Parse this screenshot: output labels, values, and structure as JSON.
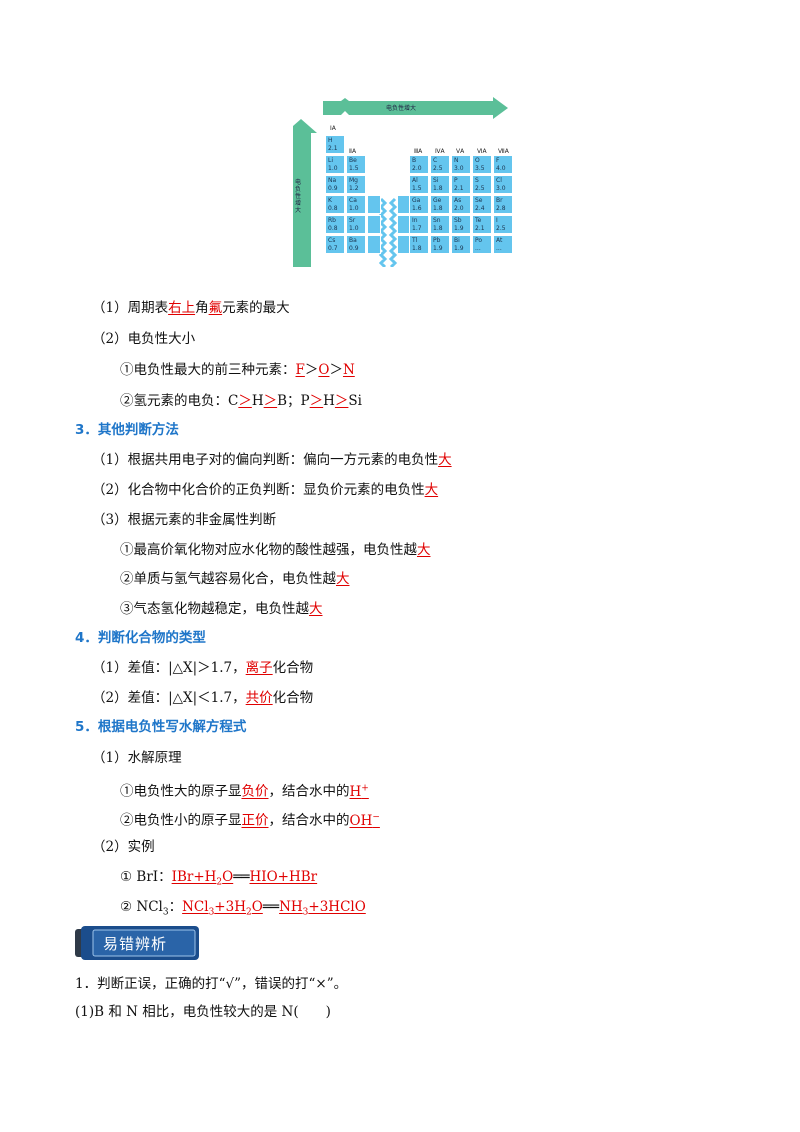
{
  "figure": {
    "top_arrow_label": "电负性增大",
    "side_arrow_label": "电负性增大",
    "group_headers": [
      "ⅠA",
      "ⅡA",
      "ⅢA",
      "ⅣA",
      "ⅤA",
      "ⅥA",
      "ⅦA"
    ],
    "left_cells": [
      [
        {
          "s": "H",
          "v": "2.1"
        }
      ],
      [
        {
          "s": "Li",
          "v": "1.0"
        },
        {
          "s": "Be",
          "v": "1.5"
        }
      ],
      [
        {
          "s": "Na",
          "v": "0.9"
        },
        {
          "s": "Mg",
          "v": "1.2"
        }
      ],
      [
        {
          "s": "K",
          "v": "0.8"
        },
        {
          "s": "Ca",
          "v": "1.0"
        }
      ],
      [
        {
          "s": "Rb",
          "v": "0.8"
        },
        {
          "s": "Sr",
          "v": "1.0"
        }
      ],
      [
        {
          "s": "Cs",
          "v": "0.7"
        },
        {
          "s": "Ba",
          "v": "0.9"
        }
      ]
    ],
    "right_cells": [
      [
        {
          "s": "B",
          "v": "2.0"
        },
        {
          "s": "C",
          "v": "2.5"
        },
        {
          "s": "N",
          "v": "3.0"
        },
        {
          "s": "O",
          "v": "3.5"
        },
        {
          "s": "F",
          "v": "4.0"
        }
      ],
      [
        {
          "s": "Al",
          "v": "1.5"
        },
        {
          "s": "Si",
          "v": "1.8"
        },
        {
          "s": "P",
          "v": "2.1"
        },
        {
          "s": "S",
          "v": "2.5"
        },
        {
          "s": "Cl",
          "v": "3.0"
        }
      ],
      [
        {
          "s": "Ga",
          "v": "1.6"
        },
        {
          "s": "Ge",
          "v": "1.8"
        },
        {
          "s": "As",
          "v": "2.0"
        },
        {
          "s": "Se",
          "v": "2.4"
        },
        {
          "s": "Br",
          "v": "2.8"
        }
      ],
      [
        {
          "s": "In",
          "v": "1.7"
        },
        {
          "s": "Sn",
          "v": "1.8"
        },
        {
          "s": "Sb",
          "v": "1.9"
        },
        {
          "s": "Te",
          "v": "2.1"
        },
        {
          "s": "I",
          "v": "2.5"
        }
      ],
      [
        {
          "s": "Tl",
          "v": "1.8"
        },
        {
          "s": "Pb",
          "v": "1.9"
        },
        {
          "s": "Bi",
          "v": "1.9"
        },
        {
          "s": "Po",
          "v": "..."
        },
        {
          "s": "At",
          "v": "..."
        }
      ]
    ]
  },
  "s1": {
    "p1a": "（1）周期表",
    "p1ans": "右上",
    "p1b": "角",
    "p1ans2": "氟",
    "p1c": "元素的最大"
  },
  "s2": {
    "title": "（2）电负性大小",
    "i1a": "①电负性最大的前三种元素：",
    "i1F": "F",
    "i1gt1": "＞",
    "i1O": "O",
    "i1gt2": "＞",
    "i1N": "N",
    "i2a": "②氢元素的电负：C",
    "i2g1": "＞",
    "i2H1": "H",
    "i2g2": "＞",
    "i2b": "B；P",
    "i2g3": "＞",
    "i2H2": "H",
    "i2g4": "＞",
    "i2c": "Si"
  },
  "s3": {
    "heading": "3．其他判断方法",
    "a": "（1）根据共用电子对的偏向判断：偏向一方元素的电负性",
    "a_ans": "大",
    "b": "（2）化合物中化合价的正负判断：显负价元素的电负性",
    "b_ans": "大",
    "c": "（3）根据元素的非金属性判断",
    "c1": "①最高价氧化物对应水化物的酸性越强，电负性越",
    "c1_ans": "大",
    "c2": "②单质与氢气越容易化合，电负性越",
    "c2_ans": "大",
    "c3": "③气态氢化物越稳定，电负性越",
    "c3_ans": "大"
  },
  "s4": {
    "heading": "4．判断化合物的类型",
    "a": "（1）差值：|△X|＞1.7，",
    "a_ans": "离子",
    "a_end": "化合物",
    "b": "（2）差值：|△X|＜1.7，",
    "b_ans": "共价",
    "b_end": "化合物"
  },
  "s5": {
    "heading": "5．根据电负性写水解方程式",
    "t1": "（1）水解原理",
    "t1a": "①电负性大的原子显",
    "t1a_ans": "负价",
    "t1a_mid": "，结合水中的",
    "t1a_ion": "H",
    "t1b": "②电负性小的原子显",
    "t1b_ans": "正价",
    "t1b_mid": "，结合水中的",
    "t1b_ion": "OH",
    "t2": "（2）实例",
    "e1": "① BrI：",
    "e1_l": "IBr+H",
    "e1_l2": "O",
    "e1_eq": "══",
    "e1_r": "HIO+HBr",
    "e2": "② NCl",
    "e2_b": "：",
    "e2_l": "NCl",
    "e2_l2": "+3H",
    "e2_l3": "O",
    "e2_eq": "══",
    "e2_r": "NH",
    "e2_r2": "+3HClO",
    "sub2": "2",
    "sub3": "3",
    "supplus": "+",
    "supminus": "−"
  },
  "banner": {
    "label": "易错辨析"
  },
  "q": {
    "intro": "1．判断正误，正确的打“√”，错误的打“×”。",
    "q1": "(1)B 和 N 相比，电负性较大的是 N(　　)"
  },
  "colors": {
    "answer": "#e00000",
    "heading": "#1f76c9",
    "cell": "#64c5ee",
    "arrow": "#5bbf98",
    "banner": "#1b4d8c"
  }
}
